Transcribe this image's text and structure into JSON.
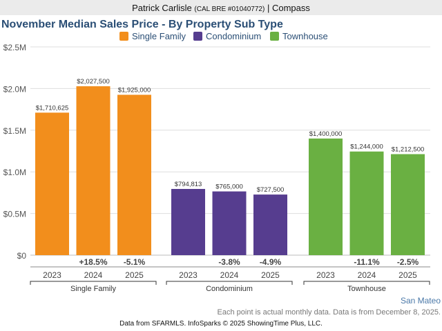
{
  "header": {
    "agent": "Patrick Carlisle",
    "license": "(CAL BRE #01040772)",
    "separator": "|",
    "brokerage": "Compass"
  },
  "chart_data": {
    "type": "bar",
    "title": "November Median Sales Price - By Property Sub Type",
    "ylabel": "",
    "xlabel": "",
    "ylim": [
      0,
      2500000
    ],
    "yticks": [
      {
        "v": 0,
        "label": "$0"
      },
      {
        "v": 500000,
        "label": "$0.5M"
      },
      {
        "v": 1000000,
        "label": "$1.0M"
      },
      {
        "v": 1500000,
        "label": "$1.5M"
      },
      {
        "v": 2000000,
        "label": "$2.0M"
      },
      {
        "v": 2500000,
        "label": "$2.5M"
      }
    ],
    "grid": true,
    "legend_position": "top-center",
    "groups": [
      {
        "name": "Single Family",
        "color": "#f28e1c",
        "years": [
          "2023",
          "2024",
          "2025"
        ],
        "values": [
          1710625,
          2027500,
          1925000
        ],
        "labels": [
          "$1,710,625",
          "$2,027,500",
          "$1,925,000"
        ],
        "changes": [
          "",
          "+18.5%",
          "-5.1%"
        ]
      },
      {
        "name": "Condominium",
        "color": "#563d8f",
        "years": [
          "2023",
          "2024",
          "2025"
        ],
        "values": [
          794813,
          765000,
          727500
        ],
        "labels": [
          "$794,813",
          "$765,000",
          "$727,500"
        ],
        "changes": [
          "",
          "-3.8%",
          "-4.9%"
        ]
      },
      {
        "name": "Townhouse",
        "color": "#6ab042",
        "years": [
          "2023",
          "2024",
          "2025"
        ],
        "values": [
          1400000,
          1244000,
          1212500
        ],
        "labels": [
          "$1,400,000",
          "$1,244,000",
          "$1,212,500"
        ],
        "changes": [
          "",
          "-11.1%",
          "-2.5%"
        ]
      }
    ]
  },
  "footer": {
    "region": "San Mateo",
    "note": "Each point is actual monthly data. Data is from December 8, 2025.",
    "credit": "Data from SFARMLS. InfoSparks © 2025 ShowingTime Plus, LLC."
  }
}
